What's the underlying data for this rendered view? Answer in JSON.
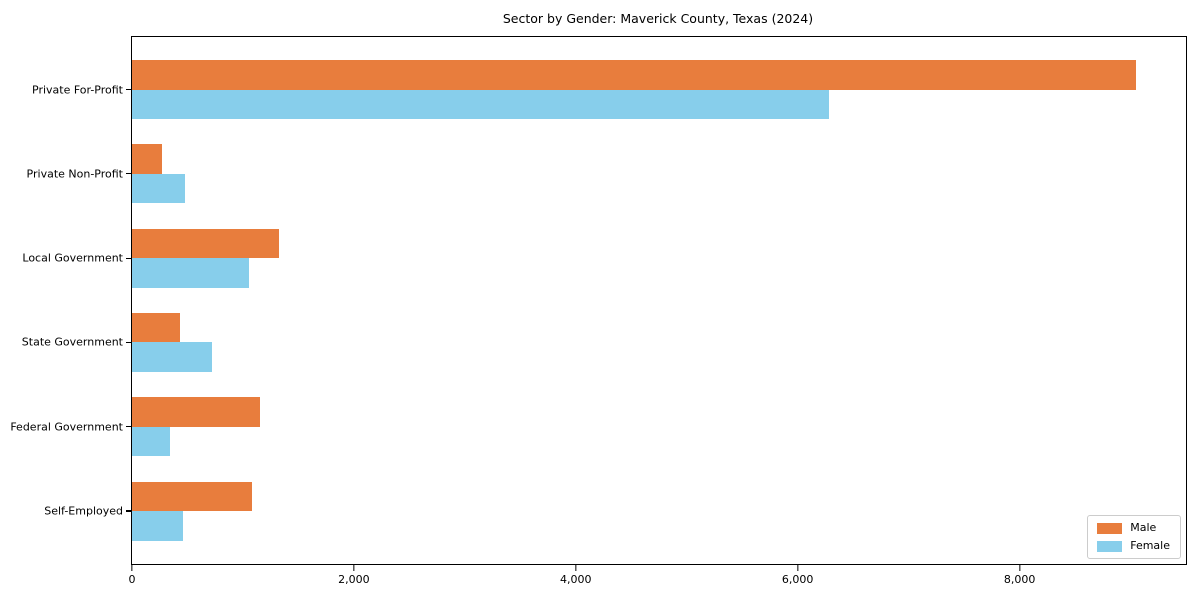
{
  "title": "Sector by Gender: Maverick County, Texas (2024)",
  "chart_data": {
    "type": "bar",
    "orientation": "horizontal",
    "title": "Sector by Gender: Maverick County, Texas (2024)",
    "categories": [
      "Private For-Profit",
      "Private Non-Profit",
      "Local Government",
      "State Government",
      "Federal Government",
      "Self-Employed"
    ],
    "series": [
      {
        "name": "Male",
        "color": "#E87D3D",
        "values": [
          9050,
          270,
          1320,
          430,
          1150,
          1080
        ]
      },
      {
        "name": "Female",
        "color": "#87CEEB",
        "values": [
          6280,
          480,
          1050,
          720,
          340,
          460
        ]
      }
    ],
    "xlabel": "",
    "ylabel": "",
    "xlim": [
      0,
      9500
    ],
    "x_ticks": [
      0,
      2000,
      4000,
      6000,
      8000
    ],
    "x_tick_labels": [
      "0",
      "2,000",
      "4,000",
      "6,000",
      "8,000"
    ],
    "bar_height_units": 0.35,
    "grid": false,
    "legend": {
      "position": "lower right",
      "entries": [
        "Male",
        "Female"
      ]
    },
    "colors": {
      "male": "#E87D3D",
      "female": "#87CEEB",
      "spine": "#000000",
      "legend_border": "#cccccc"
    }
  }
}
